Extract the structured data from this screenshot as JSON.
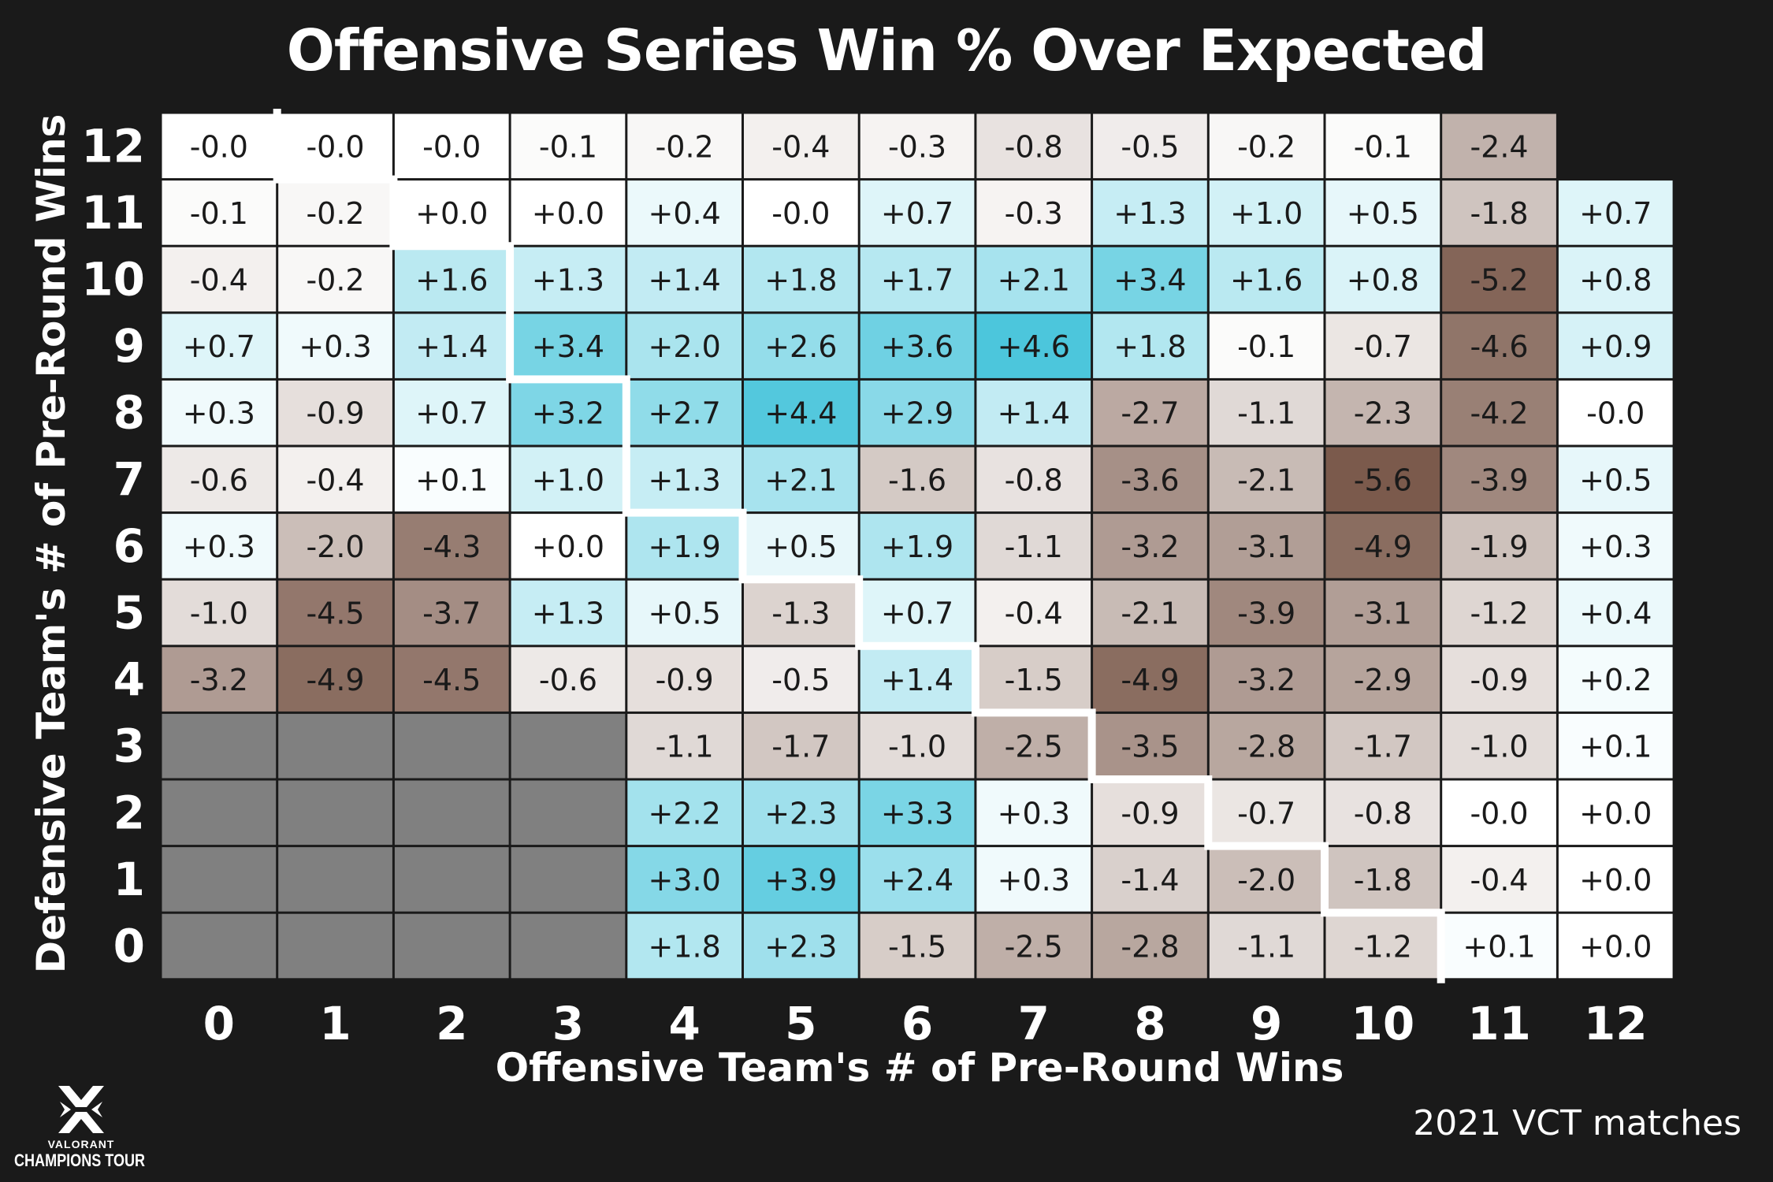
{
  "title": "Offensive Series Win % Over Expected",
  "source_note": "2021 VCT matches",
  "logo": {
    "line1": "VALORANT",
    "line2": "CHAMPIONS TOUR",
    "icon": "valorant-champions-tour-logo"
  },
  "colors": {
    "background": "#1a1a1a",
    "positive_max": "#4cc6dc",
    "neutral": "#ffffff",
    "negative_max": "#7b5a4c",
    "missing": "#808080",
    "boundary": "#ffffff"
  },
  "chart_data": {
    "type": "heatmap",
    "title": "Offensive Series Win % Over Expected",
    "xlabel": "Offensive Team's # of Pre-Round Wins",
    "ylabel": "Defensive Team's # of Pre-Round Wins",
    "x": [
      "0",
      "1",
      "2",
      "3",
      "4",
      "5",
      "6",
      "7",
      "8",
      "9",
      "10",
      "11",
      "12"
    ],
    "y": [
      "12",
      "11",
      "10",
      "9",
      "8",
      "7",
      "6",
      "5",
      "4",
      "3",
      "2",
      "1",
      "0"
    ],
    "color_range": [
      -5.6,
      4.6
    ],
    "values": [
      [
        "-0.0",
        "-0.0",
        "-0.0",
        "-0.1",
        "-0.2",
        "-0.4",
        "-0.3",
        "-0.8",
        "-0.5",
        "-0.2",
        "-0.1",
        "-2.4",
        null
      ],
      [
        "-0.1",
        "-0.2",
        "+0.0",
        "+0.0",
        "+0.4",
        "-0.0",
        "+0.7",
        "-0.3",
        "+1.3",
        "+1.0",
        "+0.5",
        "-1.8",
        "+0.7"
      ],
      [
        "-0.4",
        "-0.2",
        "+1.6",
        "+1.3",
        "+1.4",
        "+1.8",
        "+1.7",
        "+2.1",
        "+3.4",
        "+1.6",
        "+0.8",
        "-5.2",
        "+0.8"
      ],
      [
        "+0.7",
        "+0.3",
        "+1.4",
        "+3.4",
        "+2.0",
        "+2.6",
        "+3.6",
        "+4.6",
        "+1.8",
        "-0.1",
        "-0.7",
        "-4.6",
        "+0.9"
      ],
      [
        "+0.3",
        "-0.9",
        "+0.7",
        "+3.2",
        "+2.7",
        "+4.4",
        "+2.9",
        "+1.4",
        "-2.7",
        "-1.1",
        "-2.3",
        "-4.2",
        "-0.0"
      ],
      [
        "-0.6",
        "-0.4",
        "+0.1",
        "+1.0",
        "+1.3",
        "+2.1",
        "-1.6",
        "-0.8",
        "-3.6",
        "-2.1",
        "-5.6",
        "-3.9",
        "+0.5"
      ],
      [
        "+0.3",
        "-2.0",
        "-4.3",
        "+0.0",
        "+1.9",
        "+0.5",
        "+1.9",
        "-1.1",
        "-3.2",
        "-3.1",
        "-4.9",
        "-1.9",
        "+0.3"
      ],
      [
        "-1.0",
        "-4.5",
        "-3.7",
        "+1.3",
        "+0.5",
        "-1.3",
        "+0.7",
        "-0.4",
        "-2.1",
        "-3.9",
        "-3.1",
        "-1.2",
        "+0.4"
      ],
      [
        "-3.2",
        "-4.9",
        "-4.5",
        "-0.6",
        "-0.9",
        "-0.5",
        "+1.4",
        "-1.5",
        "-4.9",
        "-3.2",
        "-2.9",
        "-0.9",
        "+0.2"
      ],
      [
        "NA",
        "NA",
        "NA",
        "NA",
        "-1.1",
        "-1.7",
        "-1.0",
        "-2.5",
        "-3.5",
        "-2.8",
        "-1.7",
        "-1.0",
        "+0.1"
      ],
      [
        "NA",
        "NA",
        "NA",
        "NA",
        "+2.2",
        "+2.3",
        "+3.3",
        "+0.3",
        "-0.9",
        "-0.7",
        "-0.8",
        "-0.0",
        "+0.0"
      ],
      [
        "NA",
        "NA",
        "NA",
        "NA",
        "+3.0",
        "+3.9",
        "+2.4",
        "+0.3",
        "-1.4",
        "-2.0",
        "-1.8",
        "-0.4",
        "+0.0"
      ],
      [
        "NA",
        "NA",
        "NA",
        "NA",
        "+1.8",
        "+2.3",
        "-1.5",
        "-2.5",
        "-2.8",
        "-1.1",
        "-1.2",
        "+0.1",
        "+0.0"
      ]
    ],
    "boundary_steps": [
      [
        0,
        1
      ],
      [
        1,
        2
      ],
      [
        2,
        3
      ],
      [
        3,
        3
      ],
      [
        4,
        4
      ],
      [
        5,
        4
      ],
      [
        6,
        5
      ],
      [
        7,
        6
      ],
      [
        8,
        7
      ],
      [
        9,
        8
      ],
      [
        10,
        9
      ],
      [
        11,
        10
      ],
      [
        12,
        11
      ]
    ],
    "grid": false,
    "legend": "none"
  }
}
